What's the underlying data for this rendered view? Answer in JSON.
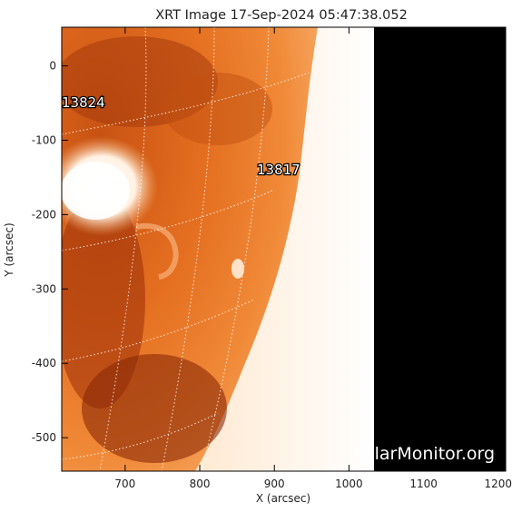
{
  "title": "XRT Image 17-Sep-2024 05:47:38.052",
  "xlabel": "X (arcsec)",
  "ylabel": "Y (arcsec)",
  "watermark": "SolarMonitor.org",
  "x_ticks": [
    "700",
    "800",
    "900",
    "1000",
    "1100",
    "1200"
  ],
  "y_ticks": [
    "0",
    "-100",
    "-200",
    "-300",
    "-400",
    "-500"
  ],
  "regions": [
    {
      "id": "13824",
      "x": 622,
      "y": -48
    },
    {
      "id": "13817",
      "x": 897,
      "y": -140
    }
  ],
  "axis_range": {
    "x": [
      615,
      1210
    ],
    "y": [
      -545,
      52
    ]
  },
  "colors": {
    "limb_bright": "#ffffff",
    "disk": "#e8701e",
    "disk_dark": "#9a2e08",
    "off_disk": "#000000"
  }
}
